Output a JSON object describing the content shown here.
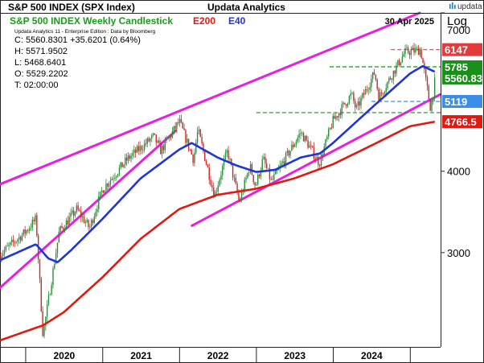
{
  "header": {
    "title": "S&P 500 INDEX (SPX Index)",
    "center_title": "Updata Analytics",
    "date": "30 Apr 2025"
  },
  "legend": {
    "chart_name": "S&P 500 INDEX Weekly Candlestick",
    "ma200_label": "E200",
    "ma40_label": "E40",
    "scale_label": "Log"
  },
  "info": {
    "source": "Updata Analytics 11 - Enterprise Edition : Data by Bloomberg",
    "close_line": "C: 5560.8301  +35.6201 (0.64%)",
    "high_line": "H: 5571.9502",
    "low_line": "L: 5468.6401",
    "open_line": "O: 5529.2202",
    "time_line": "T: 02:00:00"
  },
  "brand": {
    "name": "updata"
  },
  "colors": {
    "up_candle": "#2e8b3e",
    "down_candle": "#cc2a2a",
    "ema40": "#1f35d6",
    "ema200": "#e01a10",
    "channel": "#e81ee0",
    "legend_green": "#1a9c1a",
    "level_red": "#e33b3b",
    "level_green": "#1a8f1a",
    "level_blue": "#3a8ee8"
  },
  "chart_data": {
    "type": "candlestick",
    "scale": "log",
    "ylim": [
      2150,
      7000
    ],
    "xlim": [
      "2019-09-01",
      "2025-05-25"
    ],
    "y_ticks": [
      4000,
      3000
    ],
    "y_tick_labels": [
      "4000",
      "3000"
    ],
    "y_top_tick_label": "7000",
    "x_tick_labels": [
      "2020",
      "2021",
      "2022",
      "2023",
      "2024"
    ],
    "x_year_starts": [
      "2020-01-01",
      "2021-01-01",
      "2022-01-01",
      "2023-01-01",
      "2024-01-01",
      "2025-01-01"
    ],
    "price_path": [
      [
        "2019-09-01",
        2980
      ],
      [
        "2019-12-31",
        3230
      ],
      [
        "2020-02-19",
        3380
      ],
      [
        "2020-03-23",
        2240
      ],
      [
        "2020-06-08",
        3230
      ],
      [
        "2020-08-31",
        3500
      ],
      [
        "2020-10-30",
        3270
      ],
      [
        "2020-12-31",
        3756
      ],
      [
        "2021-04-30",
        4180
      ],
      [
        "2021-08-31",
        4520
      ],
      [
        "2021-10-04",
        4300
      ],
      [
        "2021-12-31",
        4770
      ],
      [
        "2022-03-08",
        4170
      ],
      [
        "2022-03-29",
        4630
      ],
      [
        "2022-06-16",
        3670
      ],
      [
        "2022-08-16",
        4300
      ],
      [
        "2022-10-12",
        3580
      ],
      [
        "2022-12-01",
        4080
      ],
      [
        "2022-12-28",
        3790
      ],
      [
        "2023-02-02",
        4180
      ],
      [
        "2023-03-13",
        3850
      ],
      [
        "2023-07-31",
        4590
      ],
      [
        "2023-10-27",
        4117
      ],
      [
        "2023-12-29",
        4770
      ],
      [
        "2024-03-28",
        5250
      ],
      [
        "2024-04-19",
        4970
      ],
      [
        "2024-07-16",
        5670
      ],
      [
        "2024-08-05",
        5190
      ],
      [
        "2024-12-06",
        6090
      ],
      [
        "2025-02-19",
        6144
      ],
      [
        "2025-04-08",
        4982
      ],
      [
        "2025-04-30",
        5560
      ]
    ],
    "ema40": [
      [
        "2019-09-01",
        2920
      ],
      [
        "2019-12-31",
        3040
      ],
      [
        "2020-02-19",
        3090
      ],
      [
        "2020-04-17",
        2940
      ],
      [
        "2020-06-01",
        2900
      ],
      [
        "2020-08-01",
        3020
      ],
      [
        "2020-12-31",
        3380
      ],
      [
        "2021-06-30",
        3900
      ],
      [
        "2021-12-31",
        4320
      ],
      [
        "2022-02-28",
        4420
      ],
      [
        "2022-06-30",
        4200
      ],
      [
        "2022-09-30",
        4080
      ],
      [
        "2022-12-31",
        3990
      ],
      [
        "2023-03-31",
        4020
      ],
      [
        "2023-07-31",
        4200
      ],
      [
        "2023-10-31",
        4260
      ],
      [
        "2023-12-31",
        4420
      ],
      [
        "2024-06-30",
        5000
      ],
      [
        "2024-12-31",
        5650
      ],
      [
        "2025-03-01",
        5800
      ],
      [
        "2025-04-30",
        5680
      ]
    ],
    "ema200": [
      [
        "2019-09-01",
        2200
      ],
      [
        "2020-03-23",
        2320
      ],
      [
        "2020-06-30",
        2430
      ],
      [
        "2020-12-31",
        2750
      ],
      [
        "2021-06-30",
        3150
      ],
      [
        "2021-12-31",
        3500
      ],
      [
        "2022-06-30",
        3680
      ],
      [
        "2022-12-31",
        3760
      ],
      [
        "2023-06-30",
        3900
      ],
      [
        "2023-12-31",
        4100
      ],
      [
        "2024-06-30",
        4380
      ],
      [
        "2024-12-31",
        4690
      ],
      [
        "2025-04-30",
        4766.5
      ]
    ],
    "channel_upper": [
      [
        "2019-09-01",
        3820
      ],
      [
        "2025-02-15",
        7000
      ]
    ],
    "channel_lower_short": [
      [
        "2019-09-01",
        2650
      ],
      [
        "2021-12-15",
        4620
      ]
    ],
    "channel_lower": [
      [
        "2022-03-01",
        3300
      ],
      [
        "2025-05-25",
        5250
      ]
    ],
    "levels": [
      {
        "value": 6147,
        "label": "6147",
        "style": "dashed",
        "color": "level_red",
        "start": "2024-10-01",
        "label_bg": "#e33b3b"
      },
      {
        "value": 5785,
        "label": "5785",
        "style": "dashed",
        "color": "level_green",
        "start": "2023-12-15",
        "label_bg": "#1a8f1a"
      },
      {
        "value": 5119,
        "label": "5119",
        "style": "dashed",
        "color": "level_blue",
        "start": "2024-07-01",
        "label_bg": "#3a8ee8"
      },
      {
        "value": 4920,
        "label": "",
        "style": "dashed",
        "color": "level_green",
        "start": "2023-01-01",
        "label_bg": ""
      }
    ],
    "last_close": {
      "value": 5560.83,
      "label": "5560.83",
      "label_bg": "#1a8f1a"
    },
    "ema200_last": {
      "value": 4766.5,
      "label": "4766.5",
      "label_bg": "#e01a10"
    }
  }
}
